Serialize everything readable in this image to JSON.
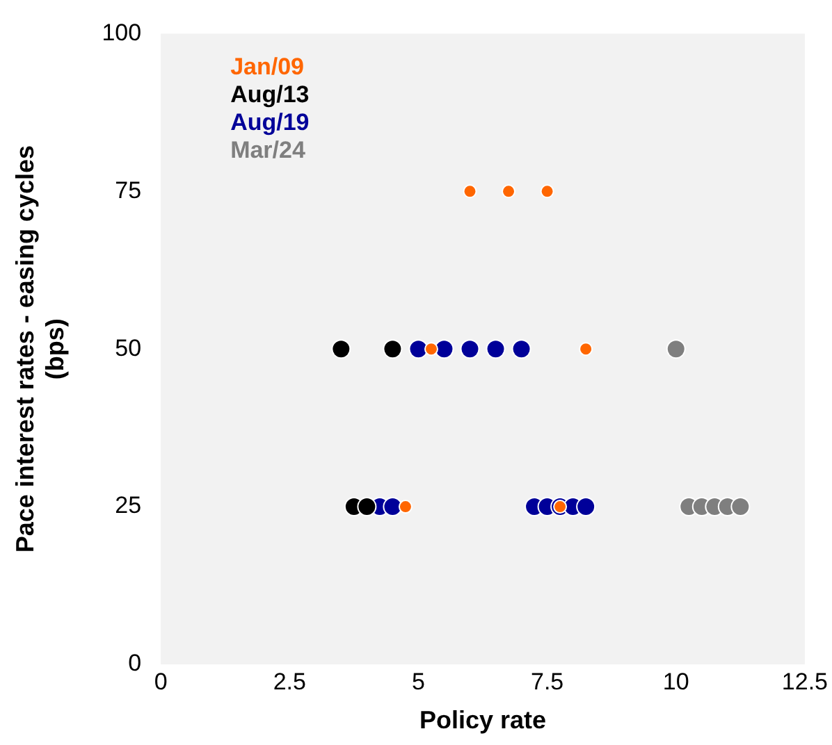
{
  "chart_data": {
    "type": "scatter",
    "xlabel": "Policy rate",
    "ylabel": "Pace interest rates - easing cycles\n(bps)",
    "xlim": [
      0,
      12.5
    ],
    "xticks": [
      0,
      2.5,
      5,
      7.5,
      10,
      12.5
    ],
    "ylim": [
      0,
      100
    ],
    "yticks": [
      0,
      25,
      50,
      75,
      100
    ],
    "grid": false,
    "legend": "top left",
    "marker": "circle",
    "series": [
      {
        "name": "Jan/09",
        "color": "#ff6600",
        "x": [
          5.25,
          8.25,
          6,
          6.75,
          7.5,
          4.75,
          7.75
        ],
        "values": [
          50,
          50,
          75,
          75,
          75,
          25,
          25
        ]
      },
      {
        "name": "Aug/13",
        "color": "#000000",
        "x": [
          3.5,
          4.5,
          3.75,
          4
        ],
        "values": [
          50,
          50,
          25,
          25
        ]
      },
      {
        "name": "Aug/19",
        "color": "#000099",
        "x": [
          5,
          5.5,
          6,
          6.5,
          7,
          4.25,
          4.5,
          7.25,
          7.5,
          7.75,
          8,
          8.25
        ],
        "values": [
          50,
          50,
          50,
          50,
          50,
          25,
          25,
          25,
          25,
          25,
          25,
          25
        ]
      },
      {
        "name": "Mar/24",
        "color": "#7f7f7f",
        "x": [
          10,
          10.25,
          10.5,
          10.75,
          11,
          11.25
        ],
        "values": [
          50,
          25,
          25,
          25,
          25,
          25
        ]
      }
    ]
  }
}
